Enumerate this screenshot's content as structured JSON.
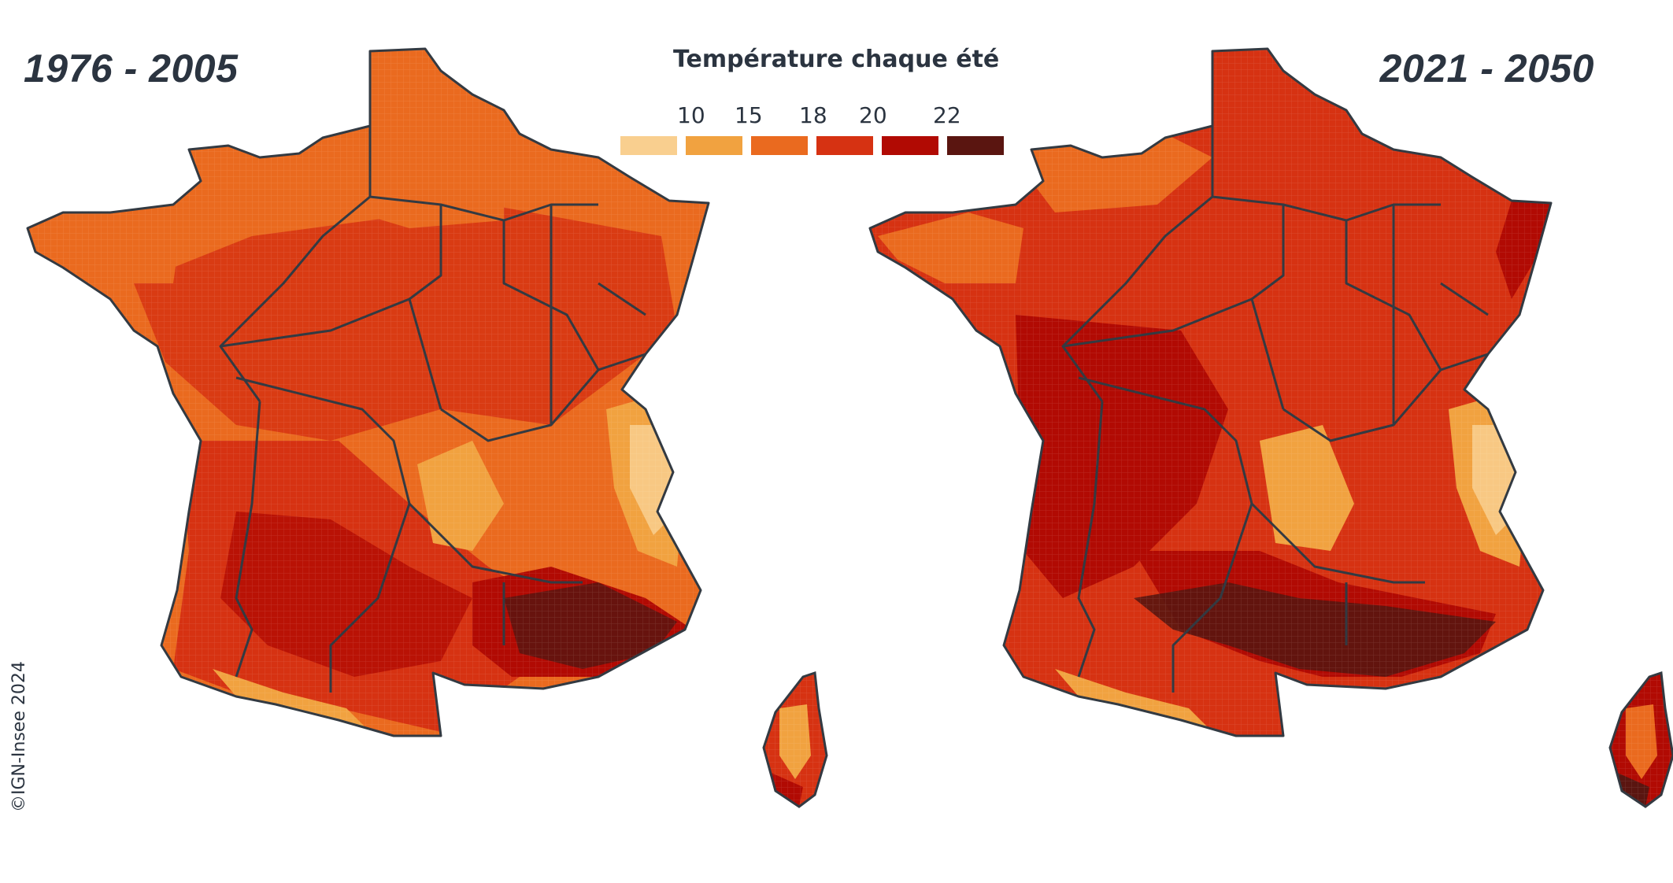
{
  "legend": {
    "title": "Température chaque été",
    "ticks": [
      "10",
      "15",
      "18",
      "20",
      "22"
    ],
    "colors": [
      "#f9cf8f",
      "#f1a240",
      "#ea6a1f",
      "#d63212",
      "#b10a03",
      "#5a1510"
    ]
  },
  "maps": [
    {
      "period": "1976 - 2005"
    },
    {
      "period": "2021 - 2050"
    }
  ],
  "credit": "©IGN-Insee 2024",
  "border_color": "#333a42"
}
